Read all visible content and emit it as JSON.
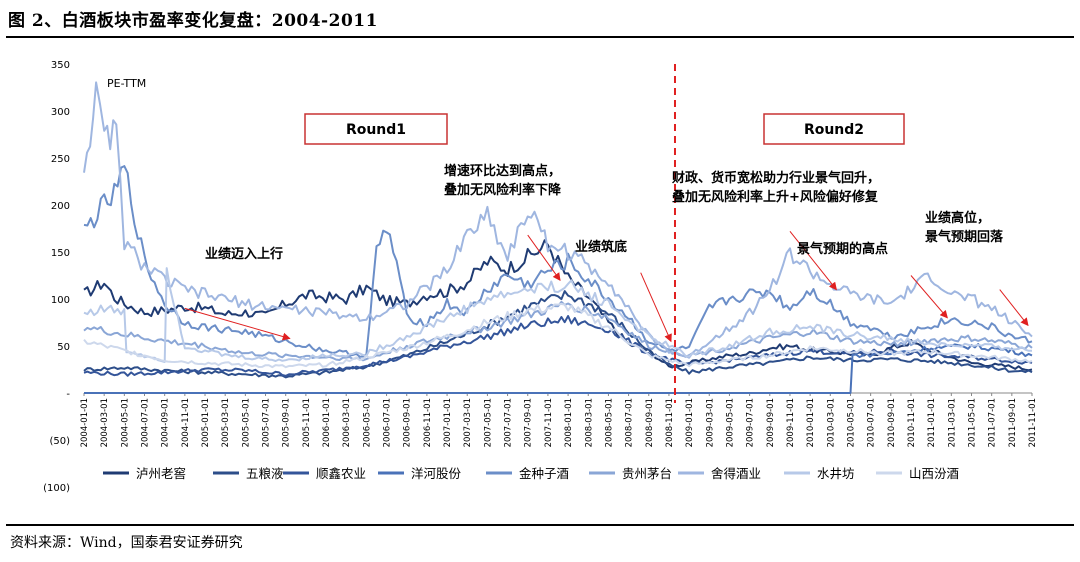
{
  "figure": {
    "title": "图 2、白酒板块市盈率变化复盘：2004-2011",
    "source": "资料来源：Wind，国泰君安证券研究"
  },
  "chart_data": {
    "type": "line",
    "title": "",
    "ylabel": "PE-TTM",
    "xlabel": "",
    "ylim": [
      -100,
      350
    ],
    "yticks": [
      "350",
      "300",
      "250",
      "200",
      "150",
      "100",
      "50",
      "-",
      "(50)",
      "(100)"
    ],
    "ytick_values": [
      350,
      300,
      250,
      200,
      150,
      100,
      50,
      0,
      -50,
      -100
    ],
    "x_tick_labels": [
      "2004-01-01",
      "2004-03-01",
      "2004-05-01",
      "2004-07-01",
      "2004-09-01",
      "2004-11-01",
      "2005-01-01",
      "2005-03-01",
      "2005-05-01",
      "2005-07-01",
      "2005-09-01",
      "2005-11-01",
      "2006-01-01",
      "2006-03-01",
      "2006-05-01",
      "2006-07-01",
      "2006-09-01",
      "2006-11-01",
      "2007-01-01",
      "2007-03-01",
      "2007-05-01",
      "2007-07-01",
      "2007-09-01",
      "2007-11-01",
      "2008-01-01",
      "2008-03-01",
      "2008-05-01",
      "2008-07-01",
      "2008-09-01",
      "2008-11-01",
      "2009-01-01",
      "2009-03-01",
      "2009-05-01",
      "2009-07-01",
      "2009-09-01",
      "2009-11-01",
      "2010-01-01",
      "2010-03-01",
      "2010-05-01",
      "2010-07-01",
      "2010-09-01",
      "2010-11-01",
      "2011-01-01",
      "2011-03-01",
      "2011-05-01",
      "2011-07-01",
      "2011-09-01",
      "2011-11-01"
    ],
    "divider_index": 29.3,
    "rounds": [
      {
        "label": "Round1"
      },
      {
        "label": "Round2"
      }
    ],
    "annotations": [
      {
        "lines": [
          "业绩迈入上行"
        ],
        "from": [
          5.0,
          90
        ],
        "to": [
          10.2,
          58
        ]
      },
      {
        "lines": [
          "增速环比达到高点，",
          "叠加无风险利率下降"
        ],
        "from": [
          22.0,
          168
        ],
        "to": [
          23.6,
          120
        ]
      },
      {
        "lines": [
          "业绩筑底"
        ],
        "from": [
          27.6,
          128
        ],
        "to": [
          29.1,
          55
        ]
      },
      {
        "lines": [
          "财政、货币宽松助力行业景气回升，",
          "叠加无风险利率上升+风险偏好修复"
        ],
        "from": [
          35.0,
          172
        ],
        "to": [
          37.3,
          110
        ]
      },
      {
        "lines": [
          "景气预期的高点"
        ],
        "from": [
          41.0,
          125
        ],
        "to": [
          42.8,
          80
        ]
      },
      {
        "lines": [
          "业绩高位，",
          "景气预期回落"
        ],
        "from": [
          45.4,
          110
        ],
        "to": [
          46.8,
          72
        ]
      }
    ],
    "series": [
      {
        "name": "泸州老窖",
        "color": "#1f3b73",
        "x": [
          0,
          1,
          1.5,
          2,
          3,
          4,
          5,
          6,
          7,
          8,
          9,
          10,
          11,
          12,
          13,
          14,
          15,
          16,
          17,
          18,
          19,
          20,
          21,
          22,
          23,
          24,
          25,
          26,
          27,
          28,
          29,
          30,
          31,
          32,
          33,
          34,
          35,
          36,
          37,
          38,
          39,
          40,
          41,
          42,
          43,
          44,
          45,
          46,
          47
        ],
        "values": [
          105,
          118,
          102,
          95,
          86,
          88,
          92,
          90,
          84,
          86,
          82,
          95,
          104,
          102,
          100,
          112,
          98,
          95,
          105,
          108,
          118,
          140,
          132,
          145,
          158,
          122,
          102,
          75,
          52,
          45,
          28,
          32,
          36,
          40,
          42,
          48,
          50,
          46,
          44,
          42,
          40,
          48,
          54,
          45,
          38,
          32,
          30,
          28,
          25
        ]
      },
      {
        "name": "五粮液",
        "color": "#2d4e8a",
        "x": [
          0,
          2,
          4,
          6,
          8,
          10,
          12,
          14,
          16,
          18,
          20,
          22,
          24,
          26,
          28,
          29,
          30,
          32,
          34,
          36,
          38,
          40,
          42,
          44,
          46,
          47
        ],
        "values": [
          25,
          27,
          24,
          22,
          20,
          18,
          22,
          28,
          40,
          55,
          72,
          92,
          105,
          85,
          45,
          30,
          22,
          28,
          32,
          38,
          35,
          36,
          34,
          30,
          24,
          22
        ]
      },
      {
        "name": "顺鑫农业",
        "color": "#34559a",
        "x": [
          0,
          2,
          4,
          6,
          8,
          10,
          12,
          14,
          16,
          18,
          20,
          22,
          24,
          26,
          28,
          30,
          32,
          34,
          36,
          38,
          40,
          42,
          44,
          46,
          47
        ],
        "values": [
          22,
          20,
          22,
          25,
          24,
          20,
          24,
          30,
          38,
          50,
          60,
          72,
          78,
          68,
          42,
          30,
          35,
          40,
          45,
          42,
          45,
          40,
          38,
          34,
          32
        ]
      },
      {
        "name": "洋河股份",
        "color": "#4a72b8",
        "x": [
          0,
          2,
          2.2,
          14,
          14.1,
          15.5,
          15.6,
          38,
          38.1,
          40,
          42,
          44,
          46,
          47
        ],
        "values": [
          0,
          0,
          0,
          0,
          0,
          0,
          0,
          0,
          40,
          42,
          48,
          50,
          45,
          40
        ]
      },
      {
        "name": "金种子酒",
        "color": "#6b8ec8",
        "x": [
          0,
          1,
          1.5,
          2,
          3,
          4,
          5,
          6,
          8,
          10,
          12,
          14,
          14.5,
          15,
          15.5,
          16,
          17,
          18,
          19,
          20,
          21,
          22,
          23,
          24,
          25,
          26,
          27,
          28,
          29,
          30,
          31,
          32,
          33,
          34,
          35,
          36,
          37,
          38,
          39,
          40,
          41,
          42,
          43,
          44,
          45,
          46,
          47
        ],
        "values": [
          172,
          200,
          210,
          240,
          140,
          95,
          75,
          70,
          65,
          55,
          45,
          40,
          150,
          175,
          140,
          80,
          75,
          95,
          85,
          110,
          125,
          115,
          130,
          140,
          120,
          100,
          80,
          55,
          45,
          48,
          90,
          100,
          105,
          108,
          90,
          110,
          95,
          75,
          70,
          60,
          65,
          72,
          78,
          75,
          70,
          60,
          55
        ]
      },
      {
        "name": "贵州茅台",
        "color": "#8aa6d6",
        "x": [
          0,
          2,
          4,
          6,
          8,
          10,
          12,
          14,
          16,
          18,
          20,
          22,
          24,
          26,
          28,
          30,
          32,
          34,
          36,
          38,
          40,
          42,
          44,
          46,
          47
        ],
        "values": [
          70,
          62,
          55,
          50,
          42,
          40,
          38,
          36,
          50,
          60,
          70,
          82,
          95,
          80,
          50,
          40,
          48,
          58,
          65,
          55,
          52,
          56,
          58,
          52,
          48
        ]
      },
      {
        "name": "舍得酒业",
        "color": "#9fb6e0",
        "x": [
          0,
          0.6,
          1,
          1.6,
          2,
          3,
          4,
          5,
          6,
          8,
          10,
          12,
          14,
          16,
          18,
          19,
          20,
          21,
          22,
          23,
          24,
          25,
          26,
          27,
          28,
          29,
          30,
          31,
          32,
          33,
          34,
          35,
          36,
          37,
          38,
          39,
          40,
          41,
          42,
          43,
          44,
          45,
          46,
          47
        ],
        "values": [
          240,
          315,
          270,
          280,
          160,
          135,
          120,
          110,
          105,
          95,
          90,
          85,
          80,
          95,
          130,
          170,
          190,
          145,
          195,
          160,
          150,
          135,
          120,
          90,
          60,
          45,
          38,
          55,
          70,
          85,
          110,
          148,
          130,
          115,
          105,
          100,
          95,
          110,
          125,
          105,
          100,
          90,
          75,
          60
        ]
      },
      {
        "name": "水井坊",
        "color": "#b7c9e8",
        "x": [
          0,
          1,
          2,
          2.1,
          3,
          4,
          4.1,
          5,
          6,
          7,
          8,
          9,
          10,
          12,
          14,
          16,
          18,
          20,
          22,
          24,
          26,
          28,
          30,
          32,
          34,
          36,
          38,
          40,
          42,
          44,
          46,
          47
        ],
        "values": [
          85,
          90,
          85,
          45,
          40,
          35,
          130,
          50,
          45,
          40,
          38,
          36,
          35,
          40,
          42,
          60,
          80,
          100,
          110,
          115,
          95,
          60,
          40,
          50,
          65,
          70,
          62,
          58,
          52,
          50,
          48,
          45
        ]
      },
      {
        "name": "山西汾酒",
        "color": "#cdd8ec",
        "x": [
          0,
          2,
          4,
          6,
          8,
          10,
          12,
          14,
          16,
          18,
          20,
          22,
          24,
          26,
          28,
          30,
          32,
          34,
          36,
          38,
          40,
          42,
          44,
          46,
          47
        ],
        "values": [
          55,
          45,
          35,
          32,
          30,
          28,
          30,
          38,
          48,
          60,
          75,
          88,
          92,
          70,
          40,
          30,
          35,
          40,
          48,
          45,
          42,
          44,
          40,
          36,
          34
        ]
      }
    ]
  }
}
